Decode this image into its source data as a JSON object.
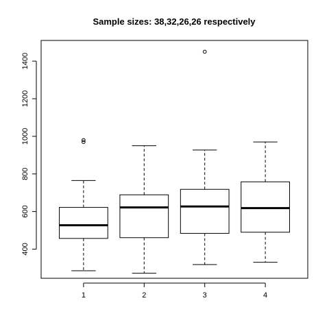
{
  "chart_data": {
    "type": "boxplot",
    "title": "Sample sizes: 38,32,26,26 respectively",
    "xlabel": "",
    "ylabel": "",
    "categories": [
      "1",
      "2",
      "3",
      "4"
    ],
    "ylim": [
      245,
      1510
    ],
    "y_ticks": [
      400,
      600,
      800,
      1000,
      1200,
      1400
    ],
    "boxes": [
      {
        "category": "1",
        "whisker_low": 285,
        "q1": 457,
        "median": 527,
        "q3": 622,
        "whisker_high": 765,
        "outliers": [
          970,
          980
        ]
      },
      {
        "category": "2",
        "whisker_low": 272,
        "q1": 461,
        "median": 622,
        "q3": 689,
        "whisker_high": 950,
        "outliers": []
      },
      {
        "category": "3",
        "whisker_low": 318,
        "q1": 484,
        "median": 627,
        "q3": 718,
        "whisker_high": 927,
        "outliers": [
          1450
        ]
      },
      {
        "category": "4",
        "whisker_low": 330,
        "q1": 490,
        "median": 618,
        "q3": 758,
        "whisker_high": 970,
        "outliers": []
      }
    ],
    "grid": false,
    "colors": {
      "box_fill": "#ffffff",
      "stroke": "#000000"
    }
  }
}
